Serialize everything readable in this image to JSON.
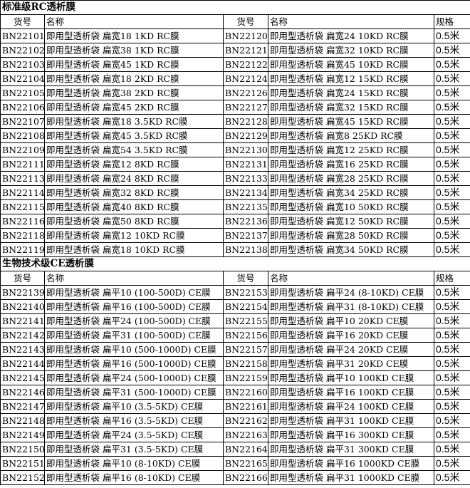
{
  "sections": [
    {
      "title": "标准级RC透析膜",
      "headers": {
        "code": "货号",
        "name": "名称",
        "spec": "规格"
      },
      "rows": [
        [
          "BN22101",
          "即用型透析袋 扁宽18  1KD RC膜",
          "BN22120",
          "即用型透析袋 扁宽24  10KD RC膜",
          "0.5米"
        ],
        [
          "BN22102",
          "即用型透析袋 扁宽38  1KD RC膜",
          "BN22121",
          "即用型透析袋 扁宽32  10KD RC膜",
          "0.5米"
        ],
        [
          "BN22103",
          "即用型透析袋 扁宽45  1KD RC膜",
          "BN22122",
          "即用型透析袋 扁宽45  10KD RC膜",
          "0.5米"
        ],
        [
          "BN22104",
          "即用型透析袋 扁宽18  2KD RC膜",
          "BN22124",
          "即用型透析袋 扁宽12  15KD RC膜",
          "0.5米"
        ],
        [
          "BN22105",
          "即用型透析袋 扁宽38  2KD RC膜",
          "BN22126",
          "即用型透析袋 扁宽24  15KD RC膜",
          "0.5米"
        ],
        [
          "BN22106",
          "即用型透析袋 扁宽45  2KD RC膜",
          "BN22127",
          "即用型透析袋 扁宽32  15KD RC膜",
          "0.5米"
        ],
        [
          "BN22107",
          "即用型透析袋 扁宽18  3.5KD RC膜",
          "BN22128",
          "即用型透析袋 扁宽45  15KD RC膜",
          "0.5米"
        ],
        [
          "BN22108",
          "即用型透析袋 扁宽45  3.5KD RC膜",
          "BN22129",
          "即用型透析袋 扁宽8   25KD RC膜",
          "0.5米"
        ],
        [
          "BN22109",
          "即用型透析袋 扁宽54  3.5KD RC膜",
          "BN22130",
          "即用型透析袋 扁宽12  25KD RC膜",
          "0.5米"
        ],
        [
          "BN22111",
          "即用型透析袋 扁宽12  8KD RC膜",
          "BN22131",
          "即用型透析袋 扁宽16  25KD RC膜",
          "0.5米"
        ],
        [
          "BN22113",
          "即用型透析袋 扁宽24  8KD RC膜",
          "BN22133",
          "即用型透析袋 扁宽28  25KD RC膜",
          "0.5米"
        ],
        [
          "BN22114",
          "即用型透析袋 扁宽32  8KD RC膜",
          "BN22134",
          "即用型透析袋 扁宽34  25KD RC膜",
          "0.5米"
        ],
        [
          "BN22115",
          "即用型透析袋 扁宽40  8KD RC膜",
          "BN22135",
          "即用型透析袋 扁宽10  50KD RC膜",
          "0.5米"
        ],
        [
          "BN22116",
          "即用型透析袋 扁宽50  8KD RC膜",
          "BN22136",
          "即用型透析袋 扁宽12  50KD RC膜",
          "0.5米"
        ],
        [
          "BN22118",
          "即用型透析袋 扁宽12  10KD RC膜",
          "BN22137",
          "即用型透析袋 扁宽28  50KD RC膜",
          "0.5米"
        ],
        [
          "BN22119",
          "即用型透析袋 扁宽18  10KD RC膜",
          "BN22138",
          "即用型透析袋 扁宽34  50KD RC膜",
          "0.5米"
        ]
      ]
    },
    {
      "title": "生物技术级CE透析膜",
      "headers": {
        "code": "货号",
        "name": "名称",
        "spec": "规格"
      },
      "rows": [
        [
          "BN22139",
          "即用型透析袋 扁平10 (100-500D) CE膜",
          "BN22153",
          "即用型透析袋 扁平24 (8-10KD) CE膜",
          "0.5米"
        ],
        [
          "BN22140",
          "即用型透析袋 扁平16 (100-500D) CE膜",
          "BN22154",
          "即用型透析袋 扁平31 (8-10KD) CE膜",
          "0.5米"
        ],
        [
          "BN22141",
          "即用型透析袋 扁平24 (100-500D) CE膜",
          "BN22155",
          "即用型透析袋 扁平10 20KD CE膜",
          "0.5米"
        ],
        [
          "BN22142",
          "即用型透析袋 扁平31 (100-500D) CE膜",
          "BN22156",
          "即用型透析袋 扁平16 20KD CE膜",
          "0.5米"
        ],
        [
          "BN22143",
          "即用型透析袋 扁平10 (500-1000D) CE膜",
          "BN22157",
          "即用型透析袋 扁平24 20KD CE膜",
          "0.5米"
        ],
        [
          "BN22144",
          "即用型透析袋 扁平16 (500-1000D) CE膜",
          "BN22158",
          "即用型透析袋 扁平31 20KD CE膜",
          "0.5米"
        ],
        [
          "BN22145",
          "即用型透析袋 扁平24 (500-1000D) CE膜",
          "BN22159",
          "即用型透析袋 扁平10 100KD CE膜",
          "0.5米"
        ],
        [
          "BN22146",
          "即用型透析袋 扁平31 (500-1000D) CE膜",
          "BN22160",
          "即用型透析袋 扁平16 100KD CE膜",
          "0.5米"
        ],
        [
          "BN22147",
          "即用型透析袋 扁平10 (3.5-5KD) CE膜",
          "BN22161",
          "即用型透析袋 扁平24 100KD CE膜",
          "0.5米"
        ],
        [
          "BN22148",
          "即用型透析袋 扁平16 (3.5-5KD) CE膜",
          "BN22162",
          "即用型透析袋 扁平31 100KD CE膜",
          "0.5米"
        ],
        [
          "BN22149",
          "即用型透析袋 扁平24 (3.5-5KD) CE膜",
          "BN22163",
          "即用型透析袋 扁平16 300KD CE膜",
          "0.5米"
        ],
        [
          "BN22150",
          "即用型透析袋 扁平31 (3.5-5KD) CE膜",
          "BN22164",
          "即用型透析袋 扁平31 300KD CE膜",
          "0.5米"
        ],
        [
          "BN22151",
          "即用型透析袋 扁平10 (8-10KD) CE膜",
          "BN22165",
          "即用型透析袋 扁平16 1000KD CE膜",
          "0.5米"
        ],
        [
          "BN22152",
          "即用型透析袋 扁平16 (8-10KD) CE膜",
          "BN22166",
          "即用型透析袋 扁平31 1000KD CE膜",
          "0.5米"
        ]
      ]
    }
  ]
}
